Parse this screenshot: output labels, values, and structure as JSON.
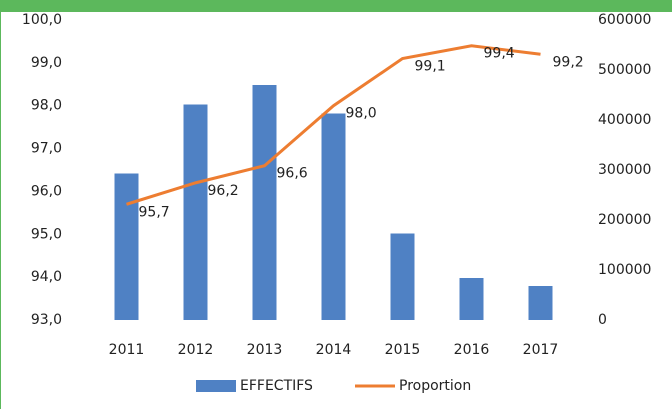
{
  "chart_data": {
    "type": "bar-line",
    "categories": [
      "2011",
      "2012",
      "2013",
      "2014",
      "2015",
      "2016",
      "2017"
    ],
    "series": [
      {
        "name": "EFFECTIFS",
        "type": "bar",
        "axis": "y2",
        "color": "#4f81c4",
        "values": [
          293000,
          431000,
          470000,
          413000,
          173000,
          84000,
          68000
        ]
      },
      {
        "name": "Proportion",
        "type": "line",
        "axis": "y",
        "color": "#ed7d31",
        "values": [
          95.7,
          96.2,
          96.6,
          98.0,
          99.1,
          99.4,
          99.2
        ],
        "value_labels": [
          "95,7",
          "96,2",
          "96,6",
          "98,0",
          "99,1",
          "99,4",
          "99,2"
        ]
      }
    ],
    "ylim": [
      93,
      100
    ],
    "yticks": [
      {
        "value": 93,
        "label": "93,0"
      },
      {
        "value": 94,
        "label": "94,0"
      },
      {
        "value": 95,
        "label": "95,0"
      },
      {
        "value": 96,
        "label": "96,0"
      },
      {
        "value": 97,
        "label": "97,0"
      },
      {
        "value": 98,
        "label": "98,0"
      },
      {
        "value": 99,
        "label": "99,0"
      },
      {
        "value": 100,
        "label": "100,0"
      }
    ],
    "y2lim": [
      0,
      600000
    ],
    "y2ticks": [
      0,
      100000,
      200000,
      300000,
      400000,
      500000,
      600000
    ],
    "legend": "bottom"
  }
}
